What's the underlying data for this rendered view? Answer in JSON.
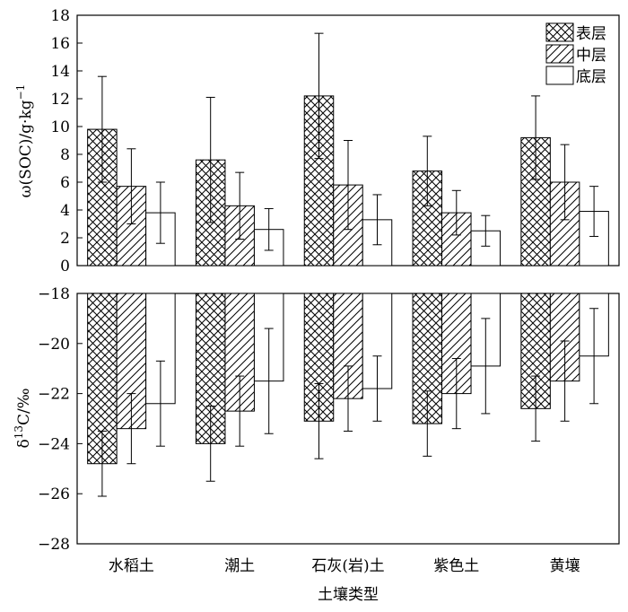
{
  "chart_data": [
    {
      "type": "bar",
      "panel": "top",
      "categories": [
        "水稻土",
        "潮土",
        "石灰(岩)土",
        "紫色土",
        "黄壤"
      ],
      "series": [
        {
          "name": "表层",
          "values": [
            9.8,
            7.6,
            12.2,
            6.8,
            9.2
          ],
          "errors": [
            3.8,
            4.5,
            4.5,
            2.5,
            3.0
          ]
        },
        {
          "name": "中层",
          "values": [
            5.7,
            4.3,
            5.8,
            3.8,
            6.0
          ],
          "errors": [
            2.7,
            2.4,
            3.2,
            1.6,
            2.7
          ]
        },
        {
          "name": "底层",
          "values": [
            3.8,
            2.6,
            3.3,
            2.5,
            3.9
          ],
          "errors": [
            2.2,
            1.5,
            1.8,
            1.1,
            1.8
          ]
        }
      ],
      "ylabel": "ω(SOC)/g·kg⁻¹",
      "ylabel_parts": {
        "prefix": "ω(SOC)/g·kg",
        "superscript": "−1"
      },
      "ylim": [
        0,
        18
      ],
      "yticks": [
        "0",
        "2",
        "4",
        "6",
        "8",
        "10",
        "12",
        "14",
        "16",
        "18"
      ],
      "legend": "top-right"
    },
    {
      "type": "bar",
      "panel": "bottom",
      "categories": [
        "水稻土",
        "潮土",
        "石灰(岩)土",
        "紫色土",
        "黄壤"
      ],
      "series": [
        {
          "name": "表层",
          "values": [
            -24.8,
            -24.0,
            -23.1,
            -23.2,
            -22.6
          ],
          "errors": [
            1.3,
            1.5,
            1.5,
            1.3,
            1.3
          ]
        },
        {
          "name": "中层",
          "values": [
            -23.4,
            -22.7,
            -22.2,
            -22.0,
            -21.5
          ],
          "errors": [
            1.4,
            1.4,
            1.3,
            1.4,
            1.6
          ]
        },
        {
          "name": "底层",
          "values": [
            -22.4,
            -21.5,
            -21.8,
            -20.9,
            -20.5
          ],
          "errors": [
            1.7,
            2.1,
            1.3,
            1.9,
            1.9
          ]
        }
      ],
      "ylabel": "δ13C/‰",
      "ylabel_parts": {
        "prefix": "δ",
        "superscript": "13",
        "suffix": "C/‰"
      },
      "ylim": [
        -28,
        -18
      ],
      "yticks": [
        "−28",
        "−26",
        "−24",
        "−22",
        "−20",
        "−18"
      ],
      "xlabel": "土壤类型"
    }
  ],
  "colors": {
    "axis": "#000000",
    "fill": "#ffffff"
  }
}
